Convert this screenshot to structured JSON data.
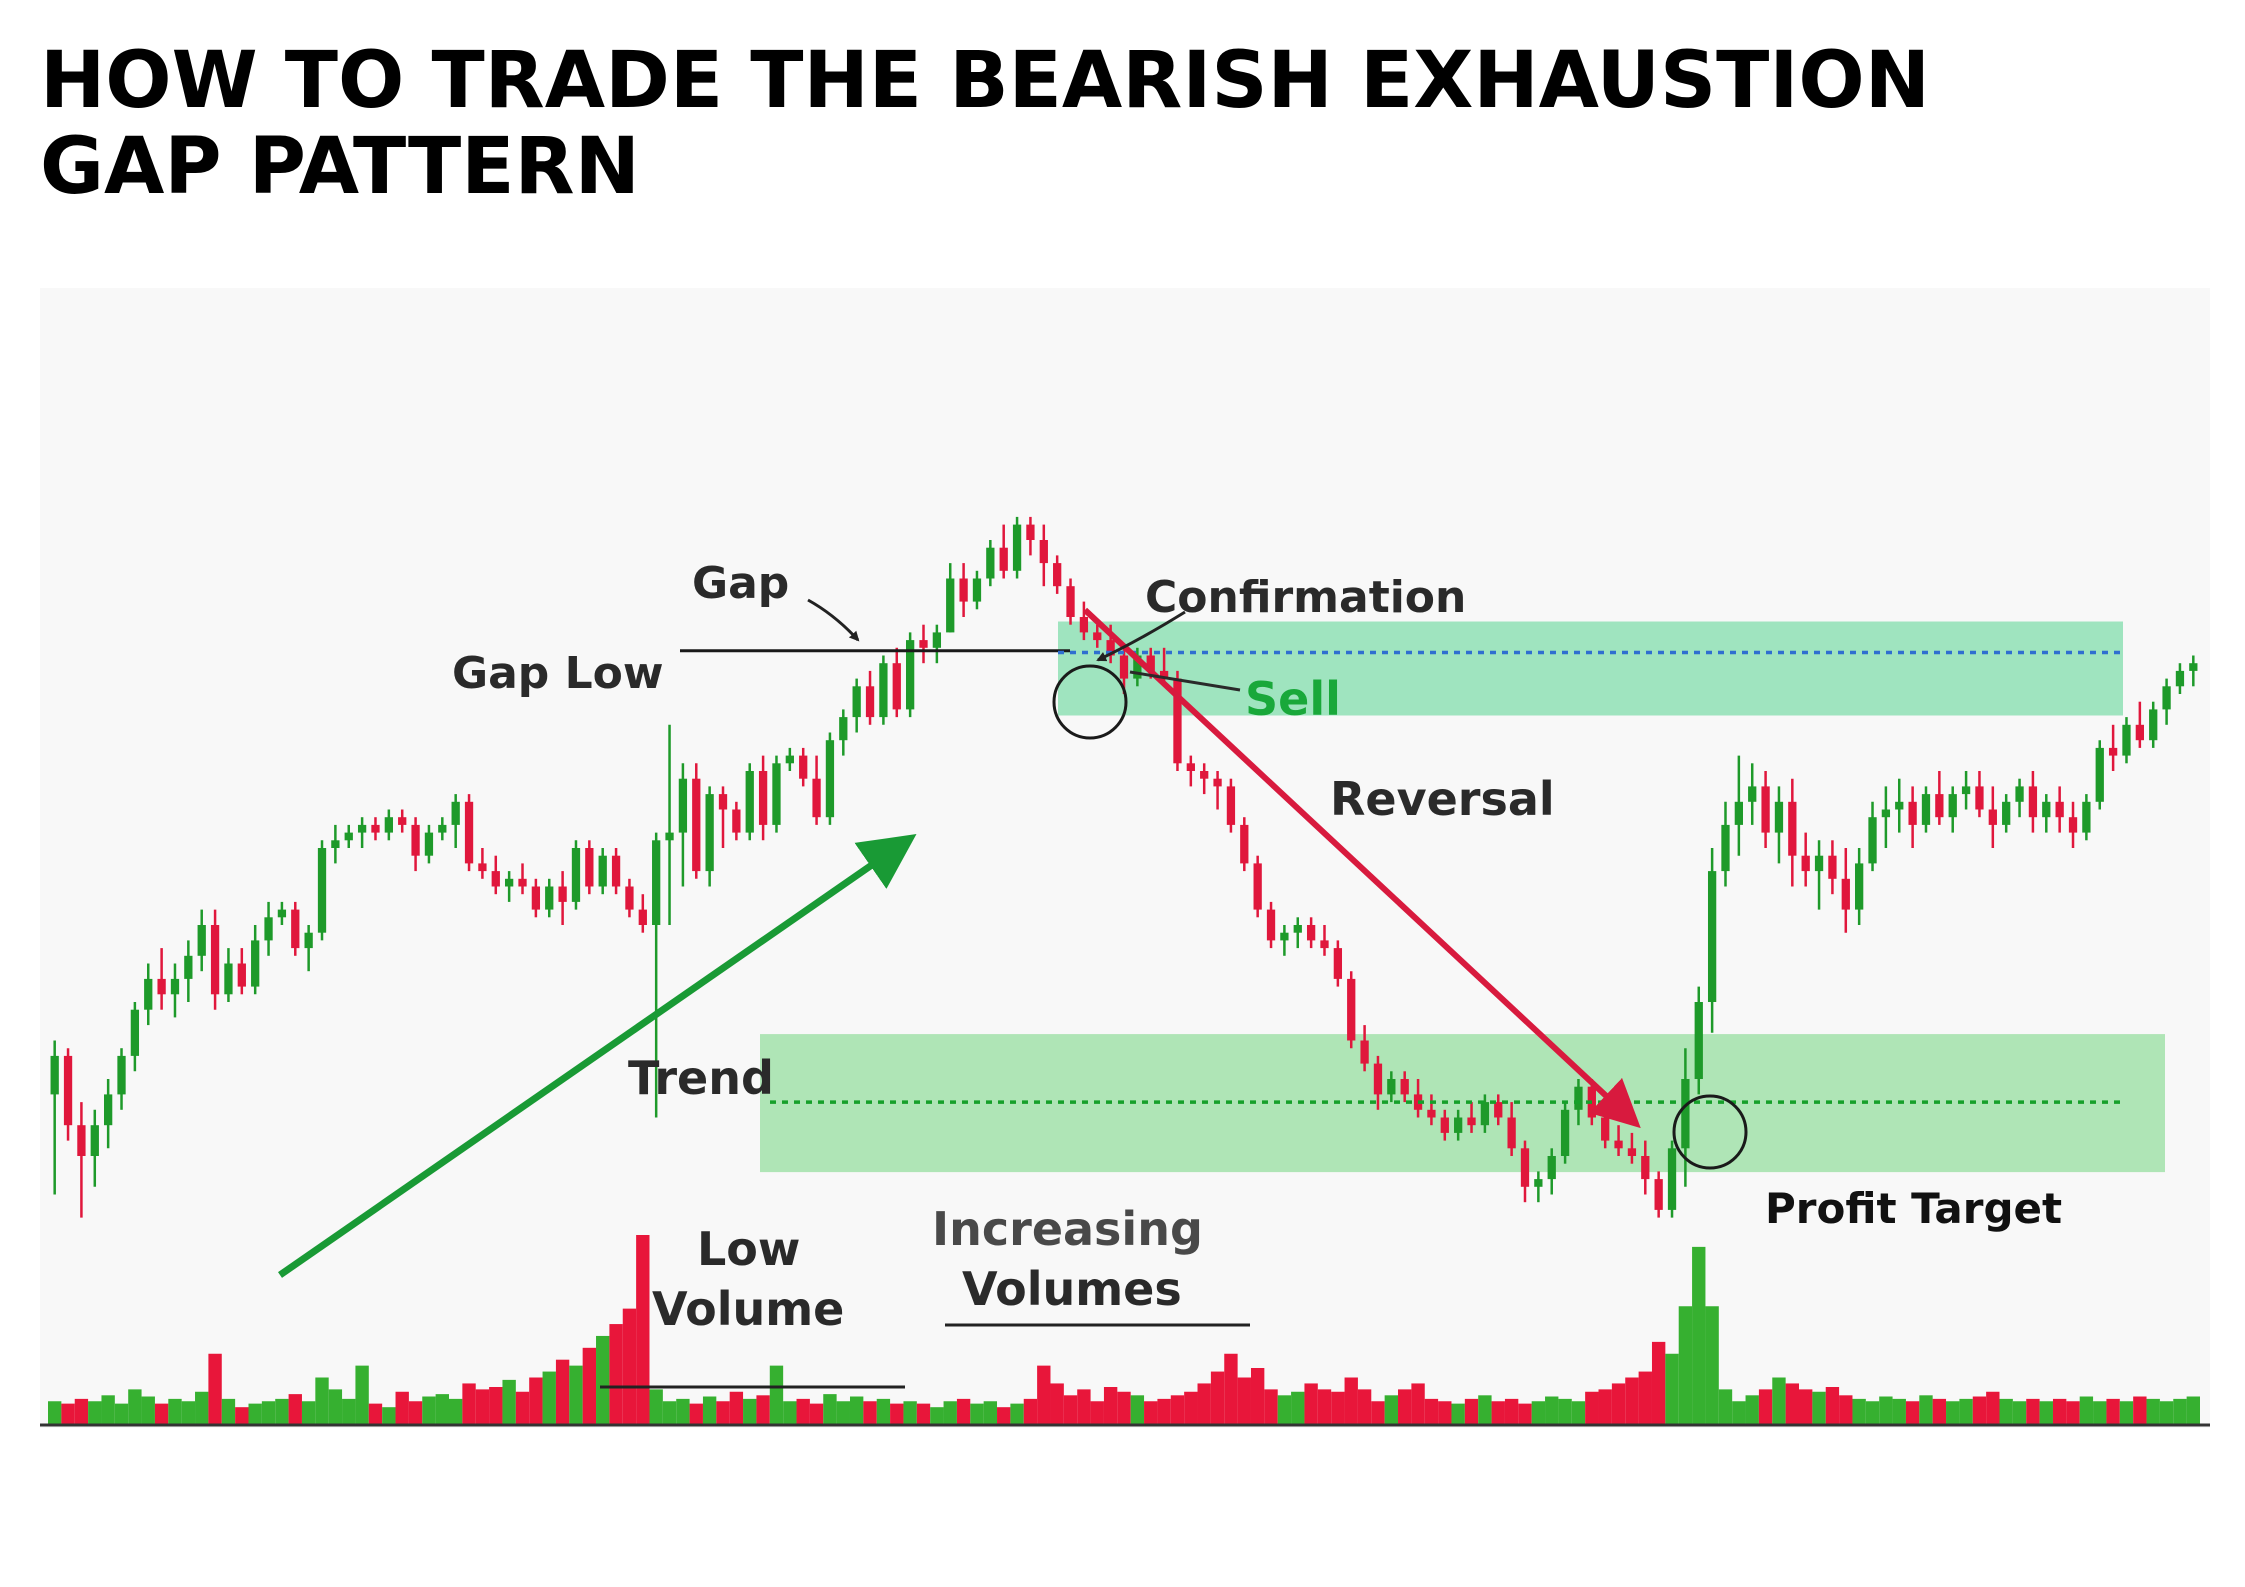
{
  "title_lines": [
    "HOW TO TRADE THE BEARISH EXHAUSTION",
    "GAP PATTERN"
  ],
  "colors": {
    "up": "#1e9a2a",
    "down": "#e0173c",
    "volume_up": "#36b030",
    "volume_down": "#e8163a",
    "zone": "#7fd88a",
    "sell_zone": "#6fd9a0",
    "sell_line": "#2f6fd0",
    "target_line": "#16a02a",
    "trend_arrow": "#199a35",
    "reversal_arrow": "#d81a3e"
  },
  "annotations": {
    "gap": "Gap",
    "gap_low": "Gap Low",
    "confirmation": "Confirmation",
    "sell": "Sell",
    "reversal": "Reversal",
    "trend": "Trend",
    "low_volume_1": "Low",
    "low_volume_2": "Volume",
    "increasing_volumes_1": "Increasing",
    "increasing_volumes_2": "Volumes",
    "profit_target": "Profit Target"
  },
  "chart_data": {
    "type": "candlestick",
    "title": "HOW TO TRADE THE BEARISH EXHAUSTION GAP PATTERN",
    "xlabel": "",
    "ylabel": "",
    "ylim": [
      0,
      100
    ],
    "volume_ylim": [
      0,
      100
    ],
    "levels": {
      "gap_low": 86,
      "sell": 85,
      "profit_target": 27
    },
    "candles": [
      {
        "o": 28,
        "h": 35,
        "l": 15,
        "c": 33,
        "v": 20
      },
      {
        "o": 33,
        "h": 34,
        "l": 22,
        "c": 24,
        "v": 18
      },
      {
        "o": 24,
        "h": 27,
        "l": 12,
        "c": 20,
        "v": 22
      },
      {
        "o": 20,
        "h": 26,
        "l": 16,
        "c": 24,
        "v": 20
      },
      {
        "o": 24,
        "h": 30,
        "l": 21,
        "c": 28,
        "v": 25
      },
      {
        "o": 28,
        "h": 34,
        "l": 26,
        "c": 33,
        "v": 18
      },
      {
        "o": 33,
        "h": 40,
        "l": 31,
        "c": 39,
        "v": 30
      },
      {
        "o": 39,
        "h": 45,
        "l": 37,
        "c": 43,
        "v": 24
      },
      {
        "o": 43,
        "h": 47,
        "l": 39,
        "c": 41,
        "v": 18
      },
      {
        "o": 41,
        "h": 45,
        "l": 38,
        "c": 43,
        "v": 22
      },
      {
        "o": 43,
        "h": 48,
        "l": 40,
        "c": 46,
        "v": 20
      },
      {
        "o": 46,
        "h": 52,
        "l": 44,
        "c": 50,
        "v": 28
      },
      {
        "o": 50,
        "h": 52,
        "l": 39,
        "c": 41,
        "v": 60
      },
      {
        "o": 41,
        "h": 47,
        "l": 40,
        "c": 45,
        "v": 22
      },
      {
        "o": 45,
        "h": 47,
        "l": 41,
        "c": 42,
        "v": 15
      },
      {
        "o": 42,
        "h": 50,
        "l": 41,
        "c": 48,
        "v": 18
      },
      {
        "o": 48,
        "h": 53,
        "l": 46,
        "c": 51,
        "v": 20
      },
      {
        "o": 51,
        "h": 53,
        "l": 50,
        "c": 52,
        "v": 22
      },
      {
        "o": 52,
        "h": 53,
        "l": 46,
        "c": 47,
        "v": 26
      },
      {
        "o": 47,
        "h": 50,
        "l": 44,
        "c": 49,
        "v": 20
      },
      {
        "o": 49,
        "h": 61,
        "l": 48,
        "c": 60,
        "v": 40
      },
      {
        "o": 60,
        "h": 63,
        "l": 58,
        "c": 61,
        "v": 30
      },
      {
        "o": 61,
        "h": 63,
        "l": 60,
        "c": 62,
        "v": 22
      },
      {
        "o": 62,
        "h": 64,
        "l": 60,
        "c": 63,
        "v": 50
      },
      {
        "o": 63,
        "h": 64,
        "l": 61,
        "c": 62,
        "v": 18
      },
      {
        "o": 62,
        "h": 65,
        "l": 61,
        "c": 64,
        "v": 15
      },
      {
        "o": 64,
        "h": 65,
        "l": 62,
        "c": 63,
        "v": 28
      },
      {
        "o": 63,
        "h": 64,
        "l": 57,
        "c": 59,
        "v": 20
      },
      {
        "o": 59,
        "h": 63,
        "l": 58,
        "c": 62,
        "v": 24
      },
      {
        "o": 62,
        "h": 64,
        "l": 61,
        "c": 63,
        "v": 26
      },
      {
        "o": 63,
        "h": 67,
        "l": 60,
        "c": 66,
        "v": 22
      },
      {
        "o": 66,
        "h": 67,
        "l": 57,
        "c": 58,
        "v": 35
      },
      {
        "o": 58,
        "h": 60,
        "l": 56,
        "c": 57,
        "v": 30
      },
      {
        "o": 57,
        "h": 59,
        "l": 54,
        "c": 55,
        "v": 32
      },
      {
        "o": 55,
        "h": 57,
        "l": 53,
        "c": 56,
        "v": 38
      },
      {
        "o": 56,
        "h": 58,
        "l": 54,
        "c": 55,
        "v": 28
      },
      {
        "o": 55,
        "h": 56,
        "l": 51,
        "c": 52,
        "v": 40
      },
      {
        "o": 52,
        "h": 56,
        "l": 51,
        "c": 55,
        "v": 45
      },
      {
        "o": 55,
        "h": 57,
        "l": 50,
        "c": 53,
        "v": 55
      },
      {
        "o": 53,
        "h": 61,
        "l": 52,
        "c": 60,
        "v": 50
      },
      {
        "o": 60,
        "h": 61,
        "l": 54,
        "c": 55,
        "v": 65
      },
      {
        "o": 55,
        "h": 60,
        "l": 54,
        "c": 59,
        "v": 75
      },
      {
        "o": 59,
        "h": 60,
        "l": 54,
        "c": 55,
        "v": 85
      },
      {
        "o": 55,
        "h": 56,
        "l": 51,
        "c": 52,
        "v": 98
      },
      {
        "o": 52,
        "h": 54,
        "l": 49,
        "c": 50,
        "v": 160
      },
      {
        "o": 50,
        "h": 62,
        "l": 25,
        "c": 61,
        "v": 30
      },
      {
        "o": 61,
        "h": 76,
        "l": 50,
        "c": 62,
        "v": 20
      },
      {
        "o": 62,
        "h": 71,
        "l": 55,
        "c": 69,
        "v": 22
      },
      {
        "o": 69,
        "h": 71,
        "l": 56,
        "c": 57,
        "v": 18
      },
      {
        "o": 57,
        "h": 68,
        "l": 55,
        "c": 67,
        "v": 24
      },
      {
        "o": 67,
        "h": 68,
        "l": 60,
        "c": 65,
        "v": 20
      },
      {
        "o": 65,
        "h": 66,
        "l": 61,
        "c": 62,
        "v": 28
      },
      {
        "o": 62,
        "h": 71,
        "l": 61,
        "c": 70,
        "v": 22
      },
      {
        "o": 70,
        "h": 72,
        "l": 61,
        "c": 63,
        "v": 25
      },
      {
        "o": 63,
        "h": 72,
        "l": 62,
        "c": 71,
        "v": 50
      },
      {
        "o": 71,
        "h": 73,
        "l": 70,
        "c": 72,
        "v": 20
      },
      {
        "o": 72,
        "h": 73,
        "l": 68,
        "c": 69,
        "v": 22
      },
      {
        "o": 69,
        "h": 72,
        "l": 63,
        "c": 64,
        "v": 18
      },
      {
        "o": 64,
        "h": 75,
        "l": 63,
        "c": 74,
        "v": 26
      },
      {
        "o": 74,
        "h": 78,
        "l": 72,
        "c": 77,
        "v": 20
      },
      {
        "o": 77,
        "h": 82,
        "l": 75,
        "c": 81,
        "v": 24
      },
      {
        "o": 81,
        "h": 83,
        "l": 76,
        "c": 77,
        "v": 20
      },
      {
        "o": 77,
        "h": 85,
        "l": 76,
        "c": 84,
        "v": 22
      },
      {
        "o": 84,
        "h": 86,
        "l": 77,
        "c": 78,
        "v": 18
      },
      {
        "o": 78,
        "h": 88,
        "l": 77,
        "c": 87,
        "v": 20
      },
      {
        "o": 87,
        "h": 89,
        "l": 84,
        "c": 86,
        "v": 18
      },
      {
        "o": 86,
        "h": 89,
        "l": 84,
        "c": 88,
        "v": 15
      },
      {
        "o": 88,
        "h": 97,
        "l": 88,
        "c": 95,
        "v": 20
      },
      {
        "o": 95,
        "h": 97,
        "l": 90,
        "c": 92,
        "v": 22
      },
      {
        "o": 92,
        "h": 96,
        "l": 91,
        "c": 95,
        "v": 18
      },
      {
        "o": 95,
        "h": 100,
        "l": 94,
        "c": 99,
        "v": 20
      },
      {
        "o": 99,
        "h": 102,
        "l": 95,
        "c": 96,
        "v": 15
      },
      {
        "o": 96,
        "h": 103,
        "l": 95,
        "c": 102,
        "v": 18
      },
      {
        "o": 102,
        "h": 103,
        "l": 98,
        "c": 100,
        "v": 22
      },
      {
        "o": 100,
        "h": 102,
        "l": 94,
        "c": 97,
        "v": 50
      },
      {
        "o": 97,
        "h": 98,
        "l": 93,
        "c": 94,
        "v": 35
      },
      {
        "o": 94,
        "h": 95,
        "l": 89,
        "c": 90,
        "v": 25
      },
      {
        "o": 90,
        "h": 92,
        "l": 87,
        "c": 88,
        "v": 30
      },
      {
        "o": 88,
        "h": 89,
        "l": 86,
        "c": 87,
        "v": 20
      },
      {
        "o": 87,
        "h": 89,
        "l": 84,
        "c": 85,
        "v": 32
      },
      {
        "o": 85,
        "h": 86,
        "l": 80,
        "c": 82,
        "v": 28
      },
      {
        "o": 82,
        "h": 86,
        "l": 81,
        "c": 85,
        "v": 25
      },
      {
        "o": 85,
        "h": 86,
        "l": 82,
        "c": 83,
        "v": 20
      },
      {
        "o": 83,
        "h": 86,
        "l": 81,
        "c": 82,
        "v": 22
      },
      {
        "o": 82,
        "h": 83,
        "l": 70,
        "c": 71,
        "v": 25
      },
      {
        "o": 71,
        "h": 72,
        "l": 68,
        "c": 70,
        "v": 28
      },
      {
        "o": 70,
        "h": 71,
        "l": 67,
        "c": 69,
        "v": 35
      },
      {
        "o": 69,
        "h": 70,
        "l": 65,
        "c": 68,
        "v": 45
      },
      {
        "o": 68,
        "h": 69,
        "l": 62,
        "c": 63,
        "v": 60
      },
      {
        "o": 63,
        "h": 64,
        "l": 57,
        "c": 58,
        "v": 40
      },
      {
        "o": 58,
        "h": 59,
        "l": 51,
        "c": 52,
        "v": 48
      },
      {
        "o": 52,
        "h": 53,
        "l": 47,
        "c": 48,
        "v": 30
      },
      {
        "o": 48,
        "h": 50,
        "l": 46,
        "c": 49,
        "v": 25
      },
      {
        "o": 49,
        "h": 51,
        "l": 47,
        "c": 50,
        "v": 28
      },
      {
        "o": 50,
        "h": 51,
        "l": 47,
        "c": 48,
        "v": 35
      },
      {
        "o": 48,
        "h": 50,
        "l": 46,
        "c": 47,
        "v": 30
      },
      {
        "o": 47,
        "h": 48,
        "l": 42,
        "c": 43,
        "v": 28
      },
      {
        "o": 43,
        "h": 44,
        "l": 34,
        "c": 35,
        "v": 40
      },
      {
        "o": 35,
        "h": 37,
        "l": 31,
        "c": 32,
        "v": 30
      },
      {
        "o": 32,
        "h": 33,
        "l": 26,
        "c": 28,
        "v": 20
      },
      {
        "o": 28,
        "h": 31,
        "l": 27,
        "c": 30,
        "v": 25
      },
      {
        "o": 30,
        "h": 31,
        "l": 27,
        "c": 28,
        "v": 30
      },
      {
        "o": 28,
        "h": 30,
        "l": 25,
        "c": 26,
        "v": 35
      },
      {
        "o": 26,
        "h": 28,
        "l": 24,
        "c": 25,
        "v": 22
      },
      {
        "o": 25,
        "h": 26,
        "l": 22,
        "c": 23,
        "v": 20
      },
      {
        "o": 23,
        "h": 26,
        "l": 22,
        "c": 25,
        "v": 18
      },
      {
        "o": 25,
        "h": 27,
        "l": 23,
        "c": 24,
        "v": 22
      },
      {
        "o": 24,
        "h": 28,
        "l": 23,
        "c": 27,
        "v": 25
      },
      {
        "o": 27,
        "h": 28,
        "l": 24,
        "c": 25,
        "v": 20
      },
      {
        "o": 25,
        "h": 27,
        "l": 20,
        "c": 21,
        "v": 22
      },
      {
        "o": 21,
        "h": 22,
        "l": 14,
        "c": 16,
        "v": 18
      },
      {
        "o": 16,
        "h": 18,
        "l": 14,
        "c": 17,
        "v": 20
      },
      {
        "o": 17,
        "h": 21,
        "l": 15,
        "c": 20,
        "v": 24
      },
      {
        "o": 20,
        "h": 27,
        "l": 19,
        "c": 26,
        "v": 22
      },
      {
        "o": 26,
        "h": 30,
        "l": 24,
        "c": 29,
        "v": 20
      },
      {
        "o": 29,
        "h": 30,
        "l": 24,
        "c": 25,
        "v": 28
      },
      {
        "o": 25,
        "h": 26,
        "l": 21,
        "c": 22,
        "v": 30
      },
      {
        "o": 22,
        "h": 24,
        "l": 20,
        "c": 21,
        "v": 35
      },
      {
        "o": 21,
        "h": 23,
        "l": 19,
        "c": 20,
        "v": 40
      },
      {
        "o": 20,
        "h": 22,
        "l": 15,
        "c": 17,
        "v": 45
      },
      {
        "o": 17,
        "h": 18,
        "l": 12,
        "c": 13,
        "v": 70
      },
      {
        "o": 13,
        "h": 22,
        "l": 12,
        "c": 21,
        "v": 60
      },
      {
        "o": 21,
        "h": 34,
        "l": 16,
        "c": 30,
        "v": 100
      },
      {
        "o": 30,
        "h": 42,
        "l": 28,
        "c": 40,
        "v": 150
      },
      {
        "o": 40,
        "h": 60,
        "l": 36,
        "c": 57,
        "v": 100
      },
      {
        "o": 57,
        "h": 66,
        "l": 55,
        "c": 63,
        "v": 30
      },
      {
        "o": 63,
        "h": 72,
        "l": 59,
        "c": 66,
        "v": 20
      },
      {
        "o": 66,
        "h": 71,
        "l": 63,
        "c": 68,
        "v": 25
      },
      {
        "o": 68,
        "h": 70,
        "l": 60,
        "c": 62,
        "v": 30
      },
      {
        "o": 62,
        "h": 68,
        "l": 58,
        "c": 66,
        "v": 40
      },
      {
        "o": 66,
        "h": 69,
        "l": 55,
        "c": 59,
        "v": 35
      },
      {
        "o": 59,
        "h": 62,
        "l": 55,
        "c": 57,
        "v": 30
      },
      {
        "o": 57,
        "h": 61,
        "l": 52,
        "c": 59,
        "v": 28
      },
      {
        "o": 59,
        "h": 61,
        "l": 54,
        "c": 56,
        "v": 32
      },
      {
        "o": 56,
        "h": 60,
        "l": 49,
        "c": 52,
        "v": 25
      },
      {
        "o": 52,
        "h": 60,
        "l": 50,
        "c": 58,
        "v": 22
      },
      {
        "o": 58,
        "h": 66,
        "l": 57,
        "c": 64,
        "v": 20
      },
      {
        "o": 64,
        "h": 68,
        "l": 60,
        "c": 65,
        "v": 24
      },
      {
        "o": 65,
        "h": 69,
        "l": 62,
        "c": 66,
        "v": 22
      },
      {
        "o": 66,
        "h": 68,
        "l": 60,
        "c": 63,
        "v": 20
      },
      {
        "o": 63,
        "h": 68,
        "l": 62,
        "c": 67,
        "v": 25
      },
      {
        "o": 67,
        "h": 70,
        "l": 63,
        "c": 64,
        "v": 22
      },
      {
        "o": 64,
        "h": 68,
        "l": 62,
        "c": 67,
        "v": 20
      },
      {
        "o": 67,
        "h": 70,
        "l": 65,
        "c": 68,
        "v": 22
      },
      {
        "o": 68,
        "h": 70,
        "l": 64,
        "c": 65,
        "v": 24
      },
      {
        "o": 65,
        "h": 68,
        "l": 60,
        "c": 63,
        "v": 28
      },
      {
        "o": 63,
        "h": 67,
        "l": 62,
        "c": 66,
        "v": 22
      },
      {
        "o": 66,
        "h": 69,
        "l": 64,
        "c": 68,
        "v": 20
      },
      {
        "o": 68,
        "h": 70,
        "l": 62,
        "c": 64,
        "v": 22
      },
      {
        "o": 64,
        "h": 67,
        "l": 62,
        "c": 66,
        "v": 20
      },
      {
        "o": 66,
        "h": 68,
        "l": 62,
        "c": 64,
        "v": 22
      },
      {
        "o": 64,
        "h": 66,
        "l": 60,
        "c": 62,
        "v": 20
      },
      {
        "o": 62,
        "h": 67,
        "l": 61,
        "c": 66,
        "v": 24
      },
      {
        "o": 66,
        "h": 74,
        "l": 65,
        "c": 73,
        "v": 20
      },
      {
        "o": 73,
        "h": 76,
        "l": 70,
        "c": 72,
        "v": 22
      },
      {
        "o": 72,
        "h": 77,
        "l": 71,
        "c": 76,
        "v": 20
      },
      {
        "o": 76,
        "h": 79,
        "l": 73,
        "c": 74,
        "v": 24
      },
      {
        "o": 74,
        "h": 79,
        "l": 73,
        "c": 78,
        "v": 22
      },
      {
        "o": 78,
        "h": 82,
        "l": 76,
        "c": 81,
        "v": 20
      },
      {
        "o": 81,
        "h": 84,
        "l": 80,
        "c": 83,
        "v": 22
      },
      {
        "o": 83,
        "h": 85,
        "l": 81,
        "c": 84,
        "v": 24
      }
    ]
  }
}
